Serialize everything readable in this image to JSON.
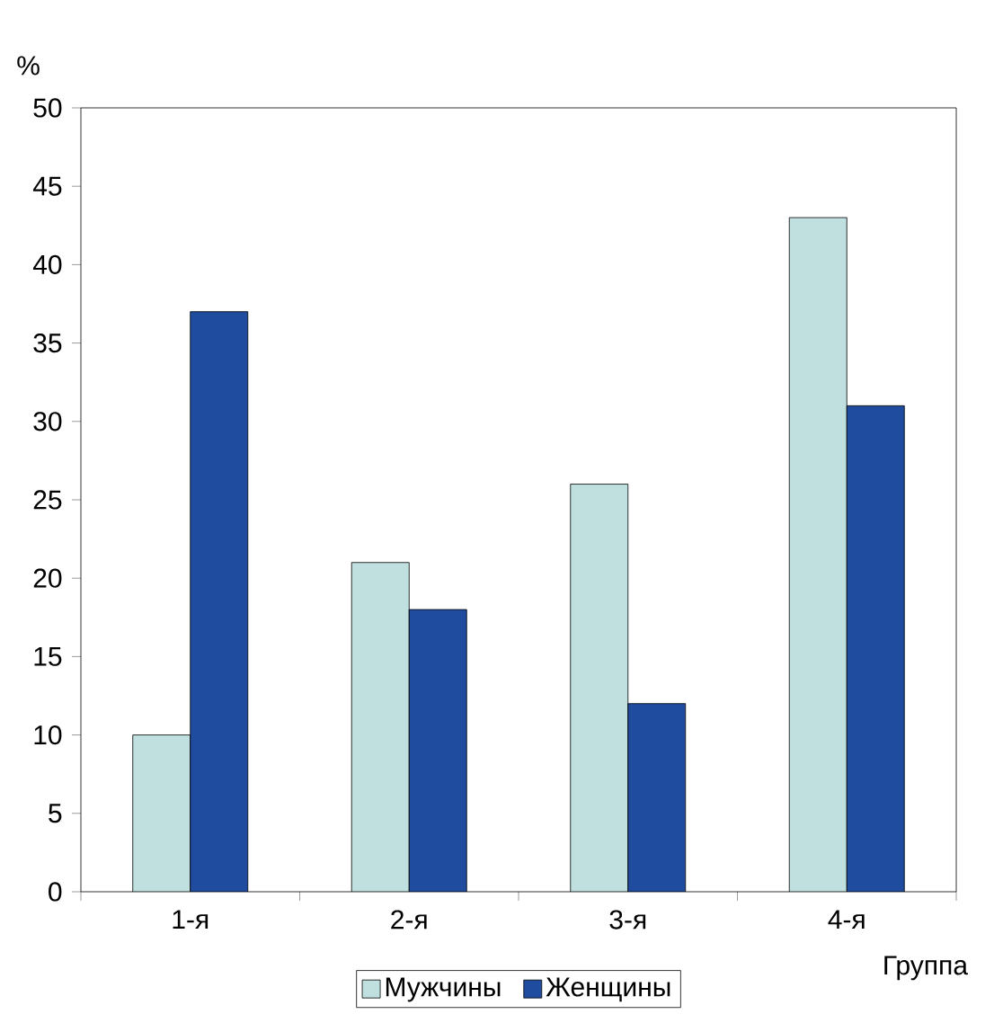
{
  "chart_data": {
    "type": "bar",
    "xlabel": "Группа",
    "ylabel": "%",
    "categories": [
      "1-я",
      "2-я",
      "3-я",
      "4-я"
    ],
    "series": [
      {
        "name": "Мужчины",
        "color": "#bfe0de",
        "values": [
          10,
          21,
          26,
          43
        ]
      },
      {
        "name": "Женщины",
        "color": "#1f4c9e",
        "values": [
          37,
          18,
          12,
          31
        ]
      }
    ],
    "ylim": [
      0,
      50
    ],
    "yticks": [
      0,
      5,
      10,
      15,
      20,
      25,
      30,
      35,
      40,
      45,
      50
    ],
    "legend": "bottom"
  }
}
